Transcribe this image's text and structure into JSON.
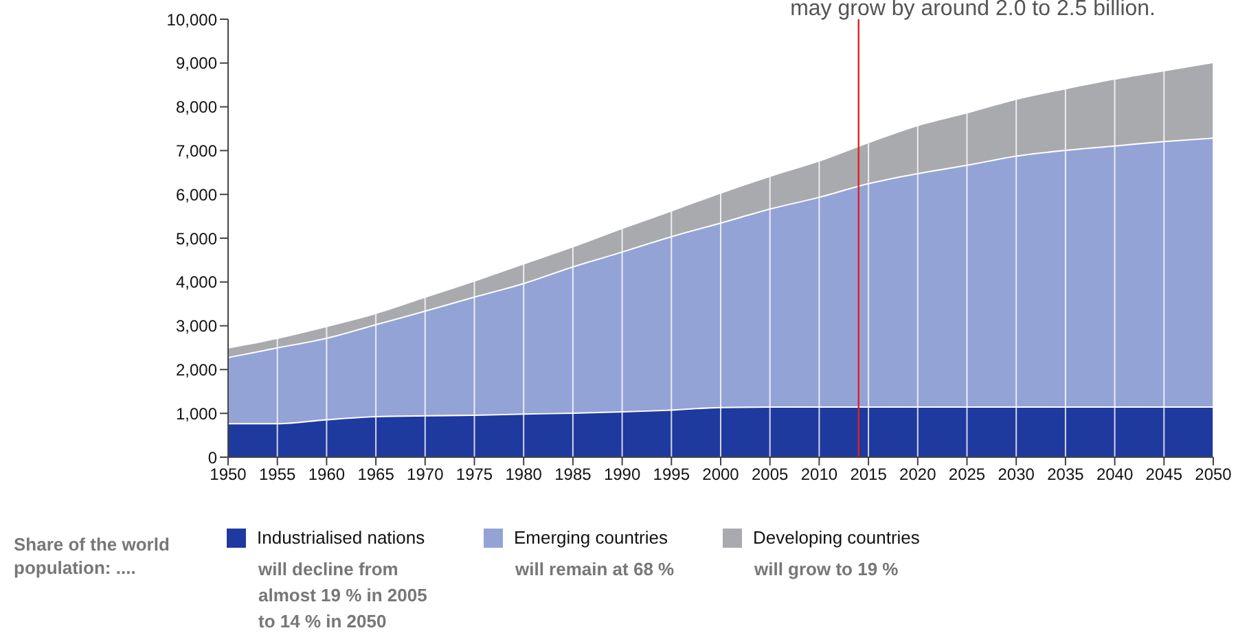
{
  "chart_data": {
    "type": "area",
    "stacked": true,
    "title": "may grow by around 2.0 to 2.5 billion.",
    "x": [
      1950,
      1955,
      1960,
      1965,
      1970,
      1975,
      1980,
      1985,
      1990,
      1995,
      2000,
      2005,
      2010,
      2015,
      2020,
      2025,
      2030,
      2035,
      2040,
      2045,
      2050
    ],
    "series": [
      {
        "name": "Industrialised nations",
        "color": "#1f3a9e",
        "values": [
          780,
          780,
          870,
          940,
          960,
          970,
          1000,
          1020,
          1050,
          1090,
          1150,
          1160,
          1160,
          1160,
          1160,
          1160,
          1160,
          1160,
          1160,
          1160,
          1160
        ]
      },
      {
        "name": "Emerging countries",
        "color": "#94a3d6",
        "values": [
          1510,
          1730,
          1860,
          2100,
          2390,
          2700,
          2980,
          3340,
          3650,
          3960,
          4210,
          4520,
          4790,
          5100,
          5330,
          5520,
          5730,
          5860,
          5960,
          6060,
          6140
        ]
      },
      {
        "name": "Developing countries",
        "color": "#a9aaae",
        "values": [
          220,
          220,
          270,
          260,
          320,
          370,
          450,
          460,
          540,
          590,
          690,
          750,
          830,
          940,
          1100,
          1200,
          1300,
          1410,
          1530,
          1620,
          1730
        ]
      }
    ],
    "xlim": [
      1950,
      2050
    ],
    "xticks": [
      1950,
      1955,
      1960,
      1965,
      1970,
      1975,
      1980,
      1985,
      1990,
      1995,
      2000,
      2005,
      2010,
      2015,
      2020,
      2025,
      2030,
      2035,
      2040,
      2045,
      2050
    ],
    "ylim": [
      0,
      10000
    ],
    "yticks": [
      0,
      {
        "value": 1000,
        "label": "1,000"
      },
      {
        "value": 2000,
        "label": "2,000"
      },
      {
        "value": 3000,
        "label": "3,000"
      },
      {
        "value": 4000,
        "label": "4,000"
      },
      {
        "value": 5000,
        "label": "5,000"
      },
      {
        "value": 6000,
        "label": "6,000"
      },
      {
        "value": 7000,
        "label": "7,000"
      },
      {
        "value": 8000,
        "label": "8,000"
      },
      {
        "value": 9000,
        "label": "9,000"
      },
      {
        "value": 10000,
        "label": "10,000"
      }
    ],
    "grid": "x",
    "legend": "bottom",
    "ref_lines": [
      {
        "axis": "x",
        "value": 2014,
        "color": "#e02020"
      }
    ],
    "annotations": [
      "Share of the world population: ....",
      "will decline from almost 19 % in 2005 to 14 % in 2050",
      "will remain at 68 %",
      "will grow to 19 %"
    ]
  }
}
